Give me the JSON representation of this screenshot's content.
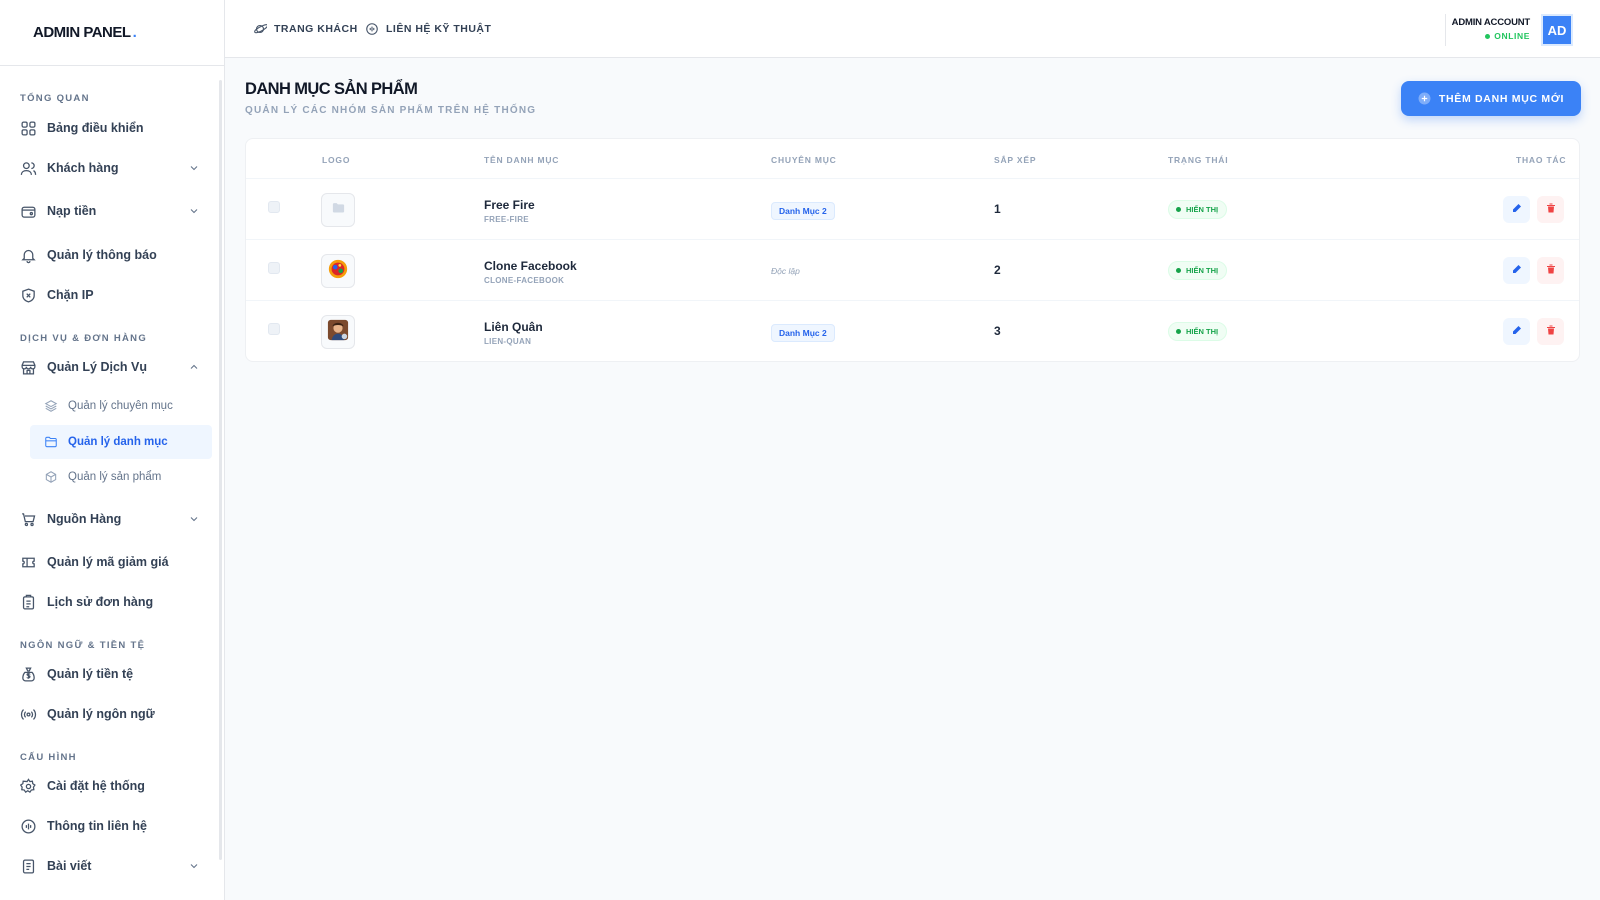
{
  "brand": {
    "name": "ADMIN PANEL",
    "dot": "."
  },
  "sidebar": {
    "sections": [
      {
        "title": "TỔNG QUAN"
      },
      {
        "title": "DỊCH VỤ & ĐƠN HÀNG"
      },
      {
        "title": "NGÔN NGỮ & TIỀN TỆ"
      },
      {
        "title": "CẤU HÌNH"
      }
    ],
    "items": [
      {
        "label": "Bảng điều khiển",
        "icon": "dashboard-icon"
      },
      {
        "label": "Khách hàng",
        "icon": "users-icon",
        "expandable": true
      },
      {
        "label": "Nạp tiền",
        "icon": "wallet-icon",
        "expandable": true
      },
      {
        "label": "Quản lý thông báo",
        "icon": "bell-icon"
      },
      {
        "label": "Chặn IP",
        "icon": "shield-x-icon"
      },
      {
        "label": "Quản Lý Dịch Vụ",
        "icon": "store-icon",
        "expanded": true
      },
      {
        "label": "Nguồn Hàng",
        "icon": "cart-icon",
        "expandable": true
      },
      {
        "label": "Quản lý mã giảm giá",
        "icon": "ticket-icon"
      },
      {
        "label": "Lịch sử đơn hàng",
        "icon": "clipboard-icon"
      },
      {
        "label": "Quản lý tiền tệ",
        "icon": "money-bag-icon"
      },
      {
        "label": "Quản lý ngôn ngữ",
        "icon": "broadcast-icon"
      },
      {
        "label": "Cài đặt hệ thống",
        "icon": "gear-icon"
      },
      {
        "label": "Thông tin liên hệ",
        "icon": "headset-icon"
      },
      {
        "label": "Bài viết",
        "icon": "document-icon",
        "expandable": true
      }
    ],
    "sub_items": [
      {
        "label": "Quản lý chuyên mục",
        "icon": "layers-icon"
      },
      {
        "label": "Quản lý danh mục",
        "icon": "folder-icon",
        "active": true
      },
      {
        "label": "Quản lý sản phẩm",
        "icon": "box-icon"
      }
    ]
  },
  "topbar": {
    "links": [
      {
        "label": "TRANG KHÁCH",
        "icon": "planet-icon"
      },
      {
        "label": "LIÊN HỆ KỸ THUẬT",
        "icon": "headset-icon"
      }
    ],
    "account": {
      "name": "ADMIN ACCOUNT",
      "status": "ONLINE",
      "initials": "AD"
    }
  },
  "page": {
    "title": "DANH MỤC SẢN PHẨM",
    "subtitle": "QUẢN LÝ CÁC NHÓM SẢN PHẨM TRÊN HỆ THỐNG",
    "add_button": "THÊM DANH MỤC MỚI"
  },
  "table": {
    "headers": [
      "LOGO",
      "TÊN DANH MỤC",
      "CHUYÊN MỤC",
      "SẮP XẾP",
      "TRẠNG THÁI",
      "THAO TÁC"
    ],
    "rows": [
      {
        "logo": "folder-icon",
        "name": "Free Fire",
        "slug": "FREE-FIRE",
        "parent": "Danh Mục 2",
        "sort": "1",
        "status": "HIỂN THỊ"
      },
      {
        "logo": "clone-facebook-logo",
        "name": "Clone Facebook",
        "slug": "CLONE-FACEBOOK",
        "parent": "Độc lập",
        "parent_is_tag": false,
        "sort": "2",
        "status": "HIỂN THỊ"
      },
      {
        "logo": "lien-quan-logo",
        "name": "Liên Quân",
        "slug": "LIEN-QUAN",
        "parent": "Danh Mục 2",
        "sort": "3",
        "status": "HIỂN THỊ"
      }
    ]
  },
  "colors": {
    "accent": "#3b82f6",
    "success": "#16a34a",
    "danger": "#ef4444"
  }
}
